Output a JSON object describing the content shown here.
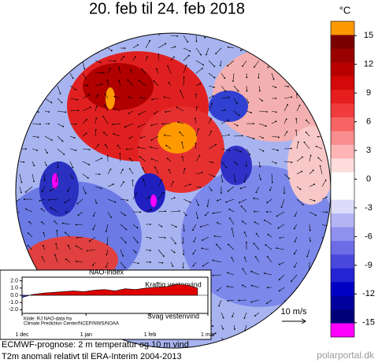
{
  "title": "20. feb til 24. feb 2018",
  "colorbar": {
    "unit": "°C",
    "ticks": [
      15,
      12,
      9,
      6,
      3,
      0,
      -3,
      -6,
      -9,
      -12,
      -15
    ],
    "lim": [
      -16.5,
      16.5
    ],
    "colors": [
      "#ff9900",
      "#7a0000",
      "#990000",
      "#b80000",
      "#d40808",
      "#e61e1e",
      "#f03c3c",
      "#f66464",
      "#f98c8c",
      "#fcb4b4",
      "#fedcdc",
      "#ffffff",
      "#ffffff",
      "#dcdcfa",
      "#b4b4f4",
      "#9090ee",
      "#6c6ce6",
      "#4848dc",
      "#2424d2",
      "#0000c4",
      "#00009c",
      "#000078",
      "#ff00ff"
    ]
  },
  "wind_legend": "10 m/s",
  "caption": [
    "ECMWF-prognose: 2 m temperatur og 10 m vind",
    "T2m anomali relativt til ERA-Interim 2004-2013"
  ],
  "source": "polarportal.dk",
  "chart_data": {
    "type": "area",
    "title": "NAO-index",
    "annotations": [
      "Kraftig vestenvind",
      "Svag vestenvind"
    ],
    "note": [
      "Kilde: RJ NAO-data fra",
      "Climate Prediction Center/NCEP/NWS/NOAA"
    ],
    "x": [
      0,
      5,
      10,
      15,
      20,
      25,
      30,
      35,
      40,
      45,
      50,
      55,
      60,
      65,
      70,
      75,
      80,
      85
    ],
    "values": [
      -0.3,
      0.1,
      0.3,
      0.4,
      0.5,
      0.6,
      0.5,
      0.7,
      0.8,
      0.6,
      0.9,
      0.8,
      1.0,
      1.1,
      1.2,
      1.5,
      1.4,
      1.0
    ],
    "positive_color": "#e00000",
    "negative_color": "#2040d0",
    "xlim": [
      0,
      90
    ],
    "xticks": [
      {
        "value": 0,
        "label": "1 dec"
      },
      {
        "value": 31,
        "label": "1 jan"
      },
      {
        "value": 62,
        "label": "1 feb"
      },
      {
        "value": 90,
        "label": "1 mar"
      }
    ],
    "ylim": [
      -2.5,
      2.5
    ],
    "yticks": [
      {
        "value": 2,
        "label": "2.0"
      },
      {
        "value": 1,
        "label": "1.0"
      },
      {
        "value": 0,
        "label": "0.0"
      },
      {
        "value": -1,
        "label": "-1.0"
      },
      {
        "value": -2,
        "label": "-2.0"
      }
    ]
  }
}
